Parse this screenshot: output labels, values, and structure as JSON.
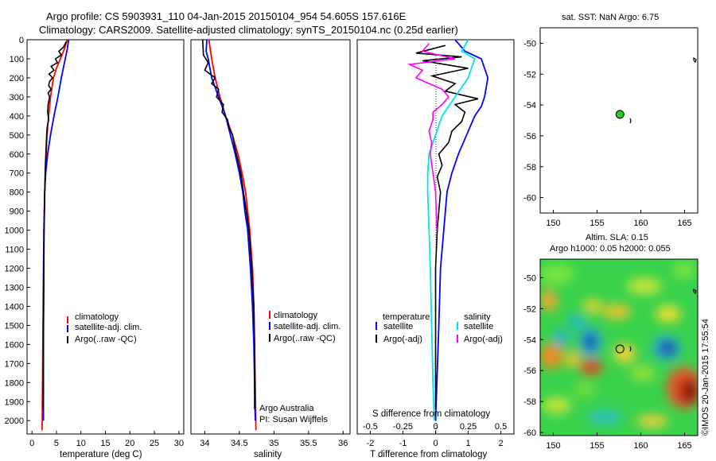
{
  "title_line1": "Argo profile: CS 5903931_110 04-Jan-2015 20150104_954 54.605S 157.616E",
  "title_line2": "Climatology: CARS2009. Satellite-adjusted climatology: synTS_20150104.nc (0.25d earlier)",
  "credit": "©IMOS 20-Jan-2015 17:55:54",
  "colors": {
    "climatology": "#ff0000",
    "satellite": "#0000ff",
    "argo": "#000000",
    "satellite_s": "#00e5e5",
    "argo_s": "#ff00ff",
    "float_marker": "#00cc00"
  },
  "depth_ticks": [
    0,
    100,
    200,
    300,
    400,
    500,
    600,
    700,
    800,
    900,
    1000,
    1100,
    1200,
    1300,
    1400,
    1500,
    1600,
    1700,
    1800,
    1900,
    2000
  ],
  "chart_data": [
    {
      "type": "line",
      "name": "temperature-profile",
      "xlabel": "temperature (deg C)",
      "xlim": [
        -1,
        31
      ],
      "ylim": [
        2070,
        0
      ],
      "xticks": [
        0,
        5,
        10,
        15,
        20,
        25,
        30
      ],
      "legend": [
        "climatology",
        "satellite-adj. clim.",
        "Argo(..raw -QC)"
      ],
      "series": [
        {
          "key": "climatology",
          "color": "#ff0000",
          "depth": [
            0,
            50,
            100,
            150,
            200,
            300,
            400,
            500,
            600,
            700,
            800,
            1000,
            1200,
            1500,
            2000,
            2050
          ],
          "values": [
            7.2,
            6.6,
            5.8,
            5.0,
            4.4,
            3.8,
            3.4,
            3.1,
            2.9,
            2.75,
            2.6,
            2.45,
            2.35,
            2.25,
            2.1,
            2.05
          ]
        },
        {
          "key": "satellite",
          "color": "#0000ff",
          "depth": [
            0,
            50,
            100,
            200,
            300,
            400,
            500,
            600,
            700,
            800,
            1000,
            1200,
            1500,
            1800,
            2000
          ],
          "values": [
            7.5,
            7.2,
            6.8,
            6.0,
            5.3,
            4.5,
            3.8,
            3.2,
            2.8,
            2.6,
            2.45,
            2.4,
            2.35,
            2.35,
            2.35
          ]
        },
        {
          "key": "argo",
          "color": "#000000",
          "depth": [
            10,
            40,
            60,
            80,
            100,
            120,
            140,
            160,
            180,
            200,
            220,
            240,
            260,
            280,
            300,
            340,
            380,
            420,
            460,
            500,
            560,
            620,
            680,
            740,
            800,
            900,
            1000,
            1200,
            1400,
            1600,
            1800,
            1940
          ],
          "values": [
            7.0,
            6.4,
            5.5,
            6.0,
            4.8,
            5.2,
            3.9,
            4.5,
            3.5,
            4.2,
            3.6,
            3.4,
            3.9,
            3.3,
            3.6,
            3.3,
            3.2,
            3.4,
            3.1,
            3.0,
            2.9,
            2.8,
            2.7,
            2.65,
            2.6,
            2.55,
            2.5,
            2.45,
            2.4,
            2.35,
            2.3,
            2.25
          ]
        }
      ]
    },
    {
      "type": "line",
      "name": "salinity-profile",
      "xlabel": "salinity",
      "xlim": [
        33.8,
        36.1
      ],
      "ylim": [
        2070,
        0
      ],
      "xticks": [
        34,
        34.5,
        35,
        35.5,
        36
      ],
      "legend": [
        "climatology",
        "satellite-adj. clim.",
        "Argo(..raw -QC)"
      ],
      "annotation": [
        "Argo Australia",
        "PI: Susan Wijffels"
      ],
      "series": [
        {
          "key": "climatology",
          "color": "#ff0000",
          "depth": [
            0,
            50,
            100,
            200,
            300,
            400,
            500,
            600,
            700,
            800,
            900,
            1000,
            1200,
            1400,
            1600,
            1800,
            2050
          ],
          "values": [
            34.06,
            34.08,
            34.1,
            34.15,
            34.22,
            34.3,
            34.4,
            34.48,
            34.54,
            34.59,
            34.62,
            34.65,
            34.69,
            34.71,
            34.72,
            34.73,
            34.74
          ]
        },
        {
          "key": "satellite",
          "color": "#0000ff",
          "depth": [
            0,
            60,
            100,
            200,
            300,
            400,
            500,
            600,
            700,
            800,
            900,
            1000,
            1200,
            1400,
            1600,
            1800,
            2000
          ],
          "values": [
            34.03,
            34.02,
            34.05,
            34.1,
            34.2,
            34.3,
            34.37,
            34.44,
            34.5,
            34.55,
            34.58,
            34.62,
            34.66,
            34.69,
            34.71,
            34.72,
            34.73
          ]
        },
        {
          "key": "argo",
          "color": "#000000",
          "depth": [
            0,
            80,
            120,
            160,
            200,
            230,
            260,
            300,
            340,
            380,
            420,
            460,
            500,
            560,
            620,
            700,
            800,
            900,
            1000,
            1200,
            1400,
            1600,
            1800,
            1940
          ],
          "values": [
            33.97,
            33.98,
            34.05,
            34.0,
            34.15,
            34.1,
            34.2,
            34.17,
            34.27,
            34.25,
            34.33,
            34.35,
            34.4,
            34.43,
            34.47,
            34.52,
            34.56,
            34.6,
            34.64,
            34.68,
            34.71,
            34.72,
            34.72,
            34.72
          ]
        }
      ]
    },
    {
      "type": "line",
      "name": "difference-profile",
      "xlabel": "T difference from climatology",
      "xlabel2": "S difference from climatology",
      "xlim": [
        -2.4,
        2.4
      ],
      "ylim": [
        2070,
        0
      ],
      "xticks": [
        -2,
        -1,
        0,
        1,
        2
      ],
      "xticks_s": [
        -0.5,
        -0.25,
        0,
        0.25,
        0.5
      ],
      "legend_headers": [
        "temperature",
        "salinity"
      ],
      "legend": [
        "satellite",
        "Argo(-adj)",
        "satellite",
        "Argo(-adj)"
      ],
      "series": [
        {
          "key": "T satellite",
          "color": "#0000ff",
          "depth": [
            0,
            60,
            100,
            200,
            300,
            350,
            400,
            500,
            600,
            700,
            800,
            1000,
            1200,
            1500,
            2000
          ],
          "values": [
            0.6,
            0.9,
            1.4,
            1.6,
            1.5,
            1.4,
            1.2,
            0.95,
            0.7,
            0.5,
            0.35,
            0.25,
            0.15,
            0.1,
            0.0
          ]
        },
        {
          "key": "T Argo",
          "color": "#000000",
          "depth": [
            30,
            70,
            90,
            110,
            150,
            190,
            230,
            270,
            310,
            340,
            380,
            430,
            480,
            540,
            600,
            660,
            720,
            800,
            900,
            1000,
            1200,
            1500,
            1940
          ],
          "values": [
            0.3,
            -0.6,
            0.8,
            -0.4,
            1.0,
            -0.1,
            0.6,
            0.3,
            1.3,
            0.6,
            0.9,
            0.8,
            0.5,
            0.4,
            0.1,
            0.2,
            0.05,
            0.15,
            0.1,
            0.05,
            0.0,
            0.0,
            0.0
          ]
        },
        {
          "key": "S satellite",
          "color": "#00e5e5",
          "depth": [
            0,
            60,
            100,
            200,
            300,
            400,
            500,
            600,
            700,
            800,
            1000,
            1200,
            1500,
            1800,
            2000
          ],
          "values": [
            0.25,
            0.2,
            0.3,
            0.25,
            0.15,
            0.05,
            0.0,
            -0.05,
            -0.06,
            -0.06,
            -0.05,
            -0.04,
            -0.03,
            -0.02,
            -0.01
          ]
        },
        {
          "key": "S Argo",
          "color": "#ff00ff",
          "depth": [
            20,
            60,
            100,
            130,
            160,
            200,
            230,
            260,
            300,
            340,
            380,
            420,
            480,
            540,
            600,
            700,
            800,
            1000
          ],
          "values": [
            -0.05,
            -0.1,
            0.15,
            -0.2,
            -0.1,
            -0.15,
            -0.05,
            0.05,
            0.1,
            0.05,
            -0.02,
            -0.02,
            -0.05,
            -0.03,
            -0.04,
            -0.02,
            0.0,
            0.01
          ]
        }
      ]
    },
    {
      "type": "scatter",
      "name": "sst-map",
      "title": "sat. SST: NaN Argo: 6.75",
      "xlim": [
        148.5,
        166.5
      ],
      "ylim": [
        -61,
        -49
      ],
      "xticks": [
        150,
        155,
        160,
        165
      ],
      "yticks": [
        -50,
        -52,
        -54,
        -56,
        -58,
        -60
      ],
      "points": [
        {
          "x": 157.616,
          "y": -54.605
        }
      ]
    },
    {
      "type": "heatmap",
      "name": "sla-map",
      "title_line1": "Altim. SLA: 0.15",
      "title_line2": "Argo h1000: 0.05 h2000: 0.055",
      "xlim": [
        148.5,
        166.5
      ],
      "ylim": [
        -60.2,
        -48.8
      ],
      "xticks": [
        150,
        155,
        160,
        165
      ],
      "yticks": [
        -50,
        -52,
        -54,
        -56,
        -58,
        -60
      ],
      "points": [
        {
          "x": 157.616,
          "y": -54.605
        }
      ]
    }
  ]
}
